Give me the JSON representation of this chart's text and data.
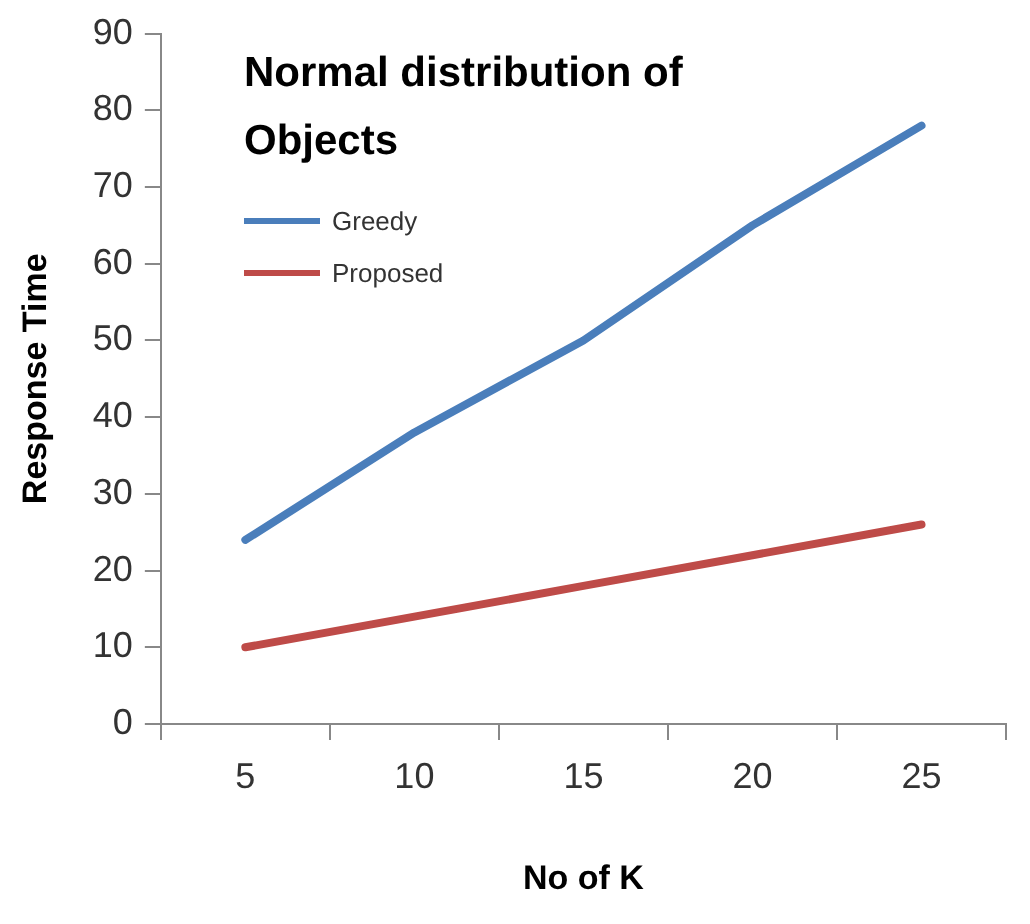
{
  "chart_data": {
    "type": "line",
    "title": "Normal distribution of Objects",
    "xlabel": "No of K",
    "ylabel": "Response Time",
    "categories": [
      "5",
      "10",
      "15",
      "20",
      "25"
    ],
    "series": [
      {
        "name": "Greedy",
        "color": "#4a7ebb",
        "values": [
          24,
          38,
          50,
          65,
          78
        ]
      },
      {
        "name": "Proposed",
        "color": "#be4b48",
        "values": [
          10,
          14,
          18,
          22,
          26
        ]
      }
    ],
    "ylim": [
      0,
      90
    ],
    "yticks": [
      0,
      10,
      20,
      30,
      40,
      50,
      60,
      70,
      80,
      90
    ],
    "grid": false,
    "legend": "top left",
    "marker": "none",
    "line_style": "solid"
  }
}
